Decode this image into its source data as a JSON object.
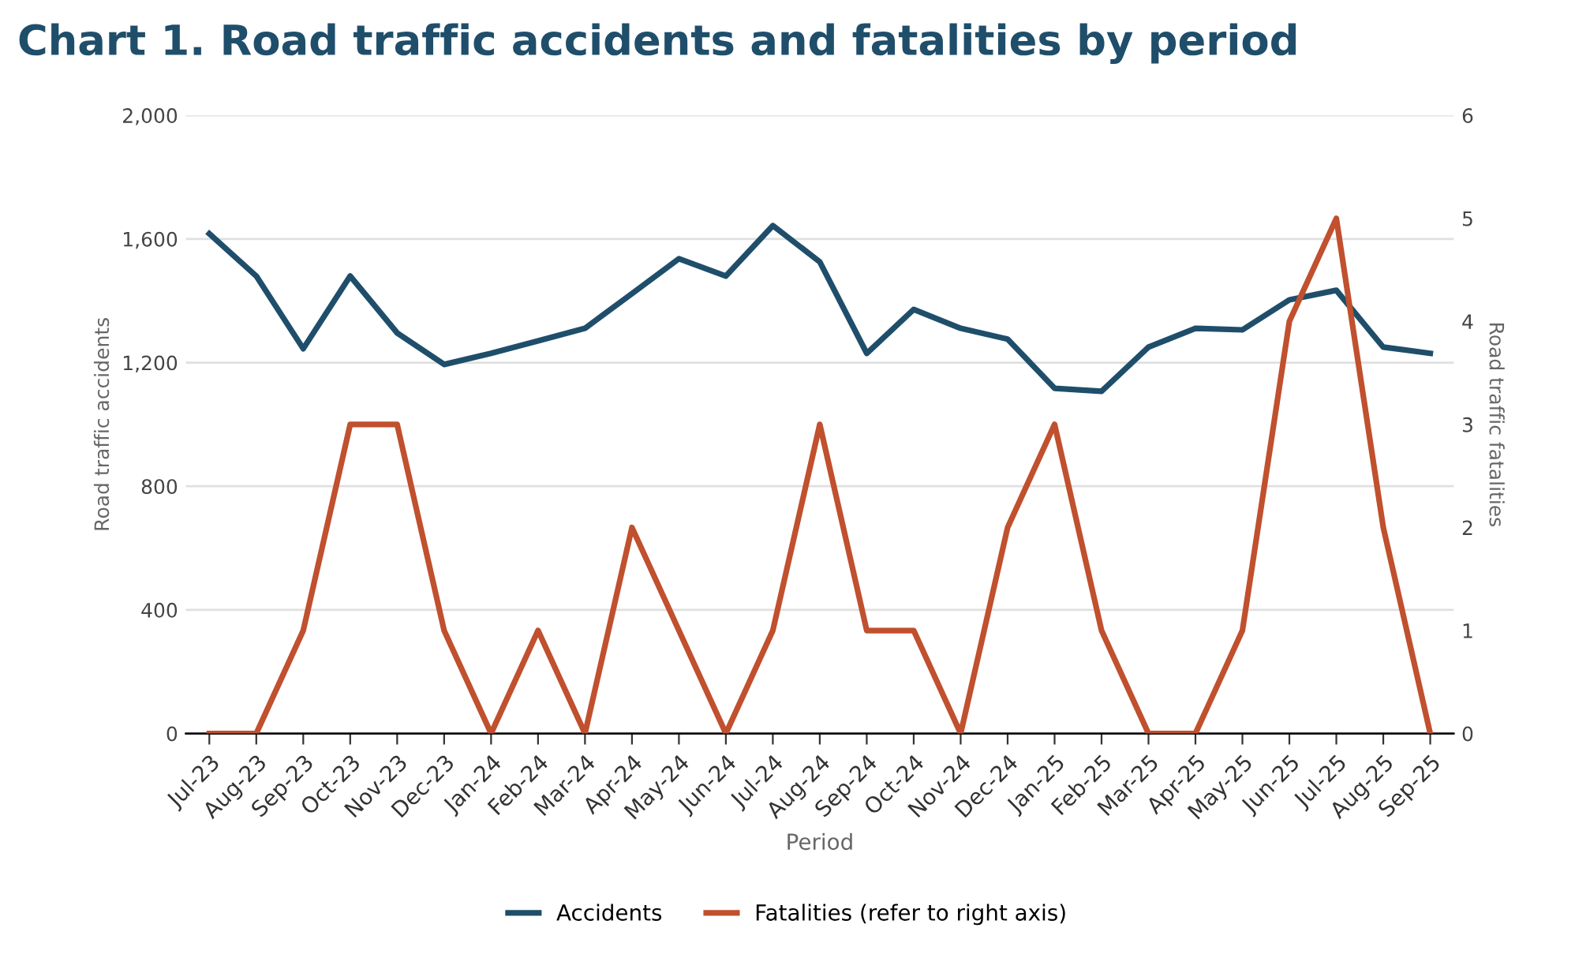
{
  "chart_data": {
    "type": "line",
    "title": "Chart 1. Road traffic accidents and fatalities by period",
    "xlabel": "Period",
    "ylabel": "Road traffic accidents",
    "y2label": "Road traffic fatalities",
    "categories": [
      "Jul-23",
      "Aug-23",
      "Sep-23",
      "Oct-23",
      "Nov-23",
      "Dec-23",
      "Jan-24",
      "Feb-24",
      "Mar-24",
      "Apr-24",
      "May-24",
      "Jun-24",
      "Jul-24",
      "Aug-24",
      "Sep-24",
      "Oct-24",
      "Nov-24",
      "Dec-24",
      "Jan-25",
      "Feb-25",
      "Mar-25",
      "Apr-25",
      "May-25",
      "Jun-25",
      "Jul-25",
      "Aug-25",
      "Sep-25"
    ],
    "series": [
      {
        "name": "Accidents",
        "color": "#1f4e6b",
        "values": [
          1617,
          1480,
          1245,
          1480,
          1296,
          1194,
          1230,
          1270,
          1311,
          1423,
          1536,
          1480,
          1643,
          1526,
          1230,
          1372,
          1311,
          1276,
          1117,
          1107,
          1250,
          1311,
          1306,
          1403,
          1434,
          1250,
          1230
        ]
      },
      {
        "name": "Fatalities (refer to right axis)",
        "color": "#c0502e",
        "axis": "y2",
        "values": [
          0,
          0,
          1,
          3,
          3,
          1,
          0,
          1,
          0,
          2,
          1,
          0,
          1,
          3,
          1,
          1,
          0,
          2,
          3,
          1,
          0,
          0,
          1,
          4,
          5,
          2,
          0
        ]
      }
    ],
    "ylim": [
      0,
      2000
    ],
    "yticks": [
      0,
      400,
      800,
      {
        "value": 1200,
        "label": "1,200"
      },
      {
        "value": 1600,
        "label": "1,600"
      },
      {
        "value": 2000,
        "label": "2,000"
      }
    ],
    "y2lim": [
      0,
      6
    ],
    "y2ticks": [
      0,
      1,
      2,
      3,
      4,
      5,
      6
    ],
    "grid": "y",
    "legend": "bottom",
    "marker": "none",
    "line_style": "solid"
  }
}
